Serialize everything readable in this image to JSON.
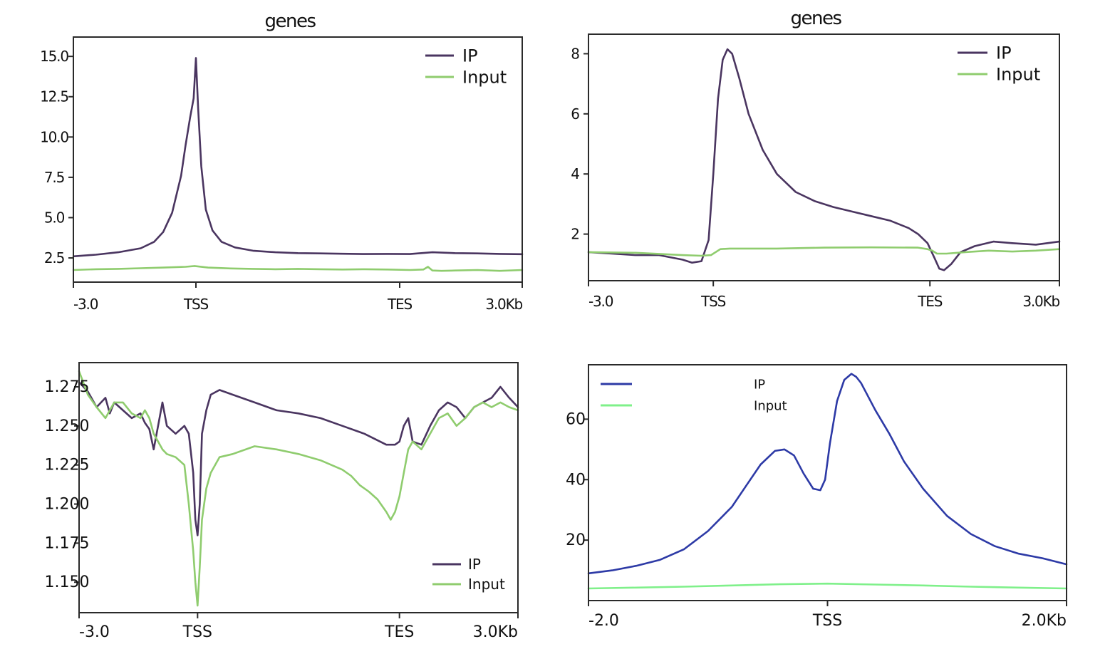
{
  "colors": {
    "ip": "#4a3560",
    "input": "#8fcc6e",
    "ip_blue": "#2d3aa6",
    "input_light": "#7ff08a",
    "axis": "#2a2a2a"
  },
  "chart_data": [
    {
      "type": "line",
      "title": "genes",
      "xlabel": "",
      "ylabel": "",
      "xlim": [
        0,
        100
      ],
      "ylim": [
        1.0,
        16.2
      ],
      "xticks": [
        {
          "x": 0,
          "label": "-3.0"
        },
        {
          "x": 27.3,
          "label": "TSS"
        },
        {
          "x": 72.7,
          "label": "TES"
        },
        {
          "x": 100,
          "label": "3.0Kb"
        }
      ],
      "yticks": [
        {
          "y": 2.5,
          "label": "2.5"
        },
        {
          "y": 5.0,
          "label": "5.0"
        },
        {
          "y": 7.5,
          "label": "7.5"
        },
        {
          "y": 10.0,
          "label": "10.0"
        },
        {
          "y": 12.5,
          "label": "12.5"
        },
        {
          "y": 15.0,
          "label": "15.0"
        }
      ],
      "legend": "top-right",
      "series": [
        {
          "name": "IP",
          "color": "ip",
          "x": [
            0,
            5,
            10,
            15,
            18,
            20,
            22,
            24,
            25,
            26,
            26.8,
            27.3,
            27.8,
            28.5,
            29.5,
            31,
            33,
            36,
            40,
            45,
            50,
            55,
            60,
            65,
            70,
            75,
            80,
            85,
            90,
            95,
            100
          ],
          "y": [
            2.6,
            2.7,
            2.85,
            3.1,
            3.5,
            4.1,
            5.3,
            7.6,
            9.5,
            11.2,
            12.4,
            14.9,
            11.8,
            8.2,
            5.5,
            4.2,
            3.5,
            3.15,
            2.95,
            2.85,
            2.8,
            2.78,
            2.76,
            2.74,
            2.75,
            2.74,
            2.85,
            2.8,
            2.78,
            2.75,
            2.73
          ]
        },
        {
          "name": "Input",
          "color": "input",
          "x": [
            0,
            5,
            10,
            15,
            20,
            25,
            27,
            30,
            35,
            40,
            45,
            50,
            55,
            60,
            65,
            70,
            75,
            78,
            79,
            80,
            82,
            85,
            90,
            95,
            100
          ],
          "y": [
            1.75,
            1.8,
            1.82,
            1.86,
            1.9,
            1.95,
            2.0,
            1.9,
            1.85,
            1.82,
            1.8,
            1.82,
            1.8,
            1.78,
            1.8,
            1.78,
            1.75,
            1.78,
            1.95,
            1.72,
            1.7,
            1.72,
            1.75,
            1.7,
            1.75
          ]
        }
      ]
    },
    {
      "type": "line",
      "title": "genes",
      "xlabel": "",
      "ylabel": "",
      "xlim": [
        0,
        100
      ],
      "ylim": [
        0.45,
        8.65
      ],
      "xticks": [
        {
          "x": 0,
          "label": "-3.0"
        },
        {
          "x": 26.5,
          "label": "TSS"
        },
        {
          "x": 72.5,
          "label": "TES"
        },
        {
          "x": 100,
          "label": "3.0Kb"
        }
      ],
      "yticks": [
        {
          "y": 2,
          "label": "2"
        },
        {
          "y": 4,
          "label": "4"
        },
        {
          "y": 6,
          "label": "6"
        },
        {
          "y": 8,
          "label": "8"
        }
      ],
      "legend": "top-right",
      "series": [
        {
          "name": "IP",
          "color": "ip",
          "x": [
            0,
            5,
            10,
            15,
            20,
            22,
            24,
            25.5,
            26.5,
            27.5,
            28.5,
            29.5,
            30.5,
            32,
            34,
            37,
            40,
            44,
            48,
            52,
            56,
            60,
            64,
            68,
            70,
            72,
            73.5,
            74.5,
            75.5,
            77,
            79,
            82,
            86,
            90,
            95,
            100
          ],
          "y": [
            1.4,
            1.35,
            1.3,
            1.3,
            1.15,
            1.05,
            1.1,
            1.8,
            4.0,
            6.5,
            7.8,
            8.15,
            8.0,
            7.2,
            6.0,
            4.8,
            4.0,
            3.4,
            3.1,
            2.9,
            2.75,
            2.6,
            2.45,
            2.2,
            2.0,
            1.7,
            1.2,
            0.85,
            0.8,
            1.0,
            1.4,
            1.6,
            1.75,
            1.7,
            1.65,
            1.75
          ]
        },
        {
          "name": "Input",
          "color": "input",
          "x": [
            0,
            10,
            20,
            24,
            26,
            28,
            30,
            40,
            50,
            60,
            70,
            72,
            73,
            74,
            76,
            80,
            85,
            90,
            95,
            100
          ],
          "y": [
            1.4,
            1.38,
            1.3,
            1.28,
            1.3,
            1.5,
            1.52,
            1.52,
            1.55,
            1.56,
            1.55,
            1.5,
            1.45,
            1.35,
            1.35,
            1.4,
            1.45,
            1.42,
            1.45,
            1.5
          ]
        }
      ]
    },
    {
      "type": "line",
      "title": "",
      "xlabel": "",
      "ylabel": "",
      "xlim": [
        0,
        100
      ],
      "ylim": [
        1.1305,
        1.2905
      ],
      "xticks": [
        {
          "x": 0,
          "label": "-3.0"
        },
        {
          "x": 27,
          "label": "TSS"
        },
        {
          "x": 73,
          "label": "TES"
        },
        {
          "x": 100,
          "label": "3.0Kb"
        }
      ],
      "yticks": [
        {
          "y": 1.15,
          "label": "1.150"
        },
        {
          "y": 1.175,
          "label": "1.175"
        },
        {
          "y": 1.2,
          "label": "1.200"
        },
        {
          "y": 1.225,
          "label": "1.225"
        },
        {
          "y": 1.25,
          "label": "1.250"
        },
        {
          "y": 1.275,
          "label": "1.275"
        }
      ],
      "legend": "lower-right",
      "series": [
        {
          "name": "IP",
          "color": "ip",
          "x": [
            0,
            2,
            4,
            6,
            7,
            8,
            10,
            12,
            14,
            15,
            16,
            17,
            18,
            19,
            20,
            22,
            24,
            25,
            26,
            26.5,
            27,
            27.5,
            28,
            29,
            30,
            32,
            35,
            40,
            45,
            50,
            55,
            60,
            65,
            70,
            72,
            73,
            74,
            75,
            76,
            78,
            80,
            82,
            84,
            86,
            88,
            90,
            92,
            94,
            96,
            98,
            100
          ],
          "y": [
            1.278,
            1.272,
            1.262,
            1.268,
            1.258,
            1.265,
            1.26,
            1.255,
            1.258,
            1.252,
            1.248,
            1.235,
            1.25,
            1.265,
            1.25,
            1.245,
            1.25,
            1.245,
            1.22,
            1.19,
            1.18,
            1.2,
            1.245,
            1.26,
            1.27,
            1.273,
            1.27,
            1.265,
            1.26,
            1.258,
            1.255,
            1.25,
            1.245,
            1.238,
            1.238,
            1.24,
            1.25,
            1.255,
            1.24,
            1.238,
            1.25,
            1.26,
            1.265,
            1.262,
            1.255,
            1.262,
            1.265,
            1.268,
            1.275,
            1.268,
            1.262
          ]
        },
        {
          "name": "Input",
          "color": "input",
          "x": [
            0,
            2,
            4,
            6,
            8,
            10,
            12,
            14,
            15,
            16,
            17,
            18,
            19,
            20,
            22,
            24,
            25,
            26,
            26.5,
            27,
            27.5,
            28,
            29,
            30,
            32,
            35,
            40,
            45,
            50,
            55,
            60,
            62,
            64,
            66,
            68,
            70,
            71,
            72,
            73,
            74,
            75,
            76,
            78,
            80,
            82,
            84,
            86,
            88,
            90,
            92,
            94,
            96,
            98,
            100
          ],
          "y": [
            1.285,
            1.27,
            1.262,
            1.255,
            1.265,
            1.265,
            1.258,
            1.255,
            1.26,
            1.255,
            1.245,
            1.24,
            1.235,
            1.232,
            1.23,
            1.225,
            1.2,
            1.17,
            1.15,
            1.135,
            1.16,
            1.19,
            1.21,
            1.22,
            1.23,
            1.232,
            1.237,
            1.235,
            1.232,
            1.228,
            1.222,
            1.218,
            1.212,
            1.208,
            1.203,
            1.195,
            1.19,
            1.195,
            1.205,
            1.22,
            1.235,
            1.24,
            1.235,
            1.245,
            1.255,
            1.258,
            1.25,
            1.255,
            1.262,
            1.265,
            1.262,
            1.265,
            1.262,
            1.26
          ]
        }
      ]
    },
    {
      "type": "line",
      "title": "",
      "xlabel": "",
      "ylabel": "",
      "xlim": [
        0,
        100
      ],
      "ylim": [
        0,
        78
      ],
      "xticks": [
        {
          "x": 0,
          "label": "-2.0"
        },
        {
          "x": 50,
          "label": "TSS"
        },
        {
          "x": 100,
          "label": "2.0Kb"
        }
      ],
      "yticks": [
        {
          "y": 20,
          "label": "20"
        },
        {
          "y": 40,
          "label": "40"
        },
        {
          "y": 60,
          "label": "60"
        }
      ],
      "legend": "top-left",
      "series": [
        {
          "name": "IP",
          "color": "ip_blue",
          "x": [
            0,
            5,
            10,
            15,
            20,
            25,
            30,
            33,
            36,
            39,
            41,
            43,
            45,
            47,
            48.5,
            49.5,
            50.5,
            52,
            53.5,
            55,
            56,
            57,
            58,
            60,
            63,
            66,
            70,
            75,
            80,
            85,
            90,
            95,
            100
          ],
          "y": [
            9,
            10,
            11.5,
            13.5,
            17,
            23,
            31,
            38,
            45,
            49.5,
            50,
            48,
            42,
            37,
            36.5,
            40,
            52,
            66,
            73,
            75,
            74,
            72,
            69,
            63,
            55,
            46,
            37,
            28,
            22,
            18,
            15.5,
            14,
            12
          ]
        },
        {
          "name": "Input",
          "color": "input_light",
          "x": [
            0,
            10,
            20,
            30,
            40,
            50,
            60,
            70,
            80,
            90,
            100
          ],
          "y": [
            4,
            4.3,
            4.6,
            5.0,
            5.4,
            5.6,
            5.3,
            5.0,
            4.6,
            4.3,
            4.0
          ]
        }
      ]
    }
  ]
}
